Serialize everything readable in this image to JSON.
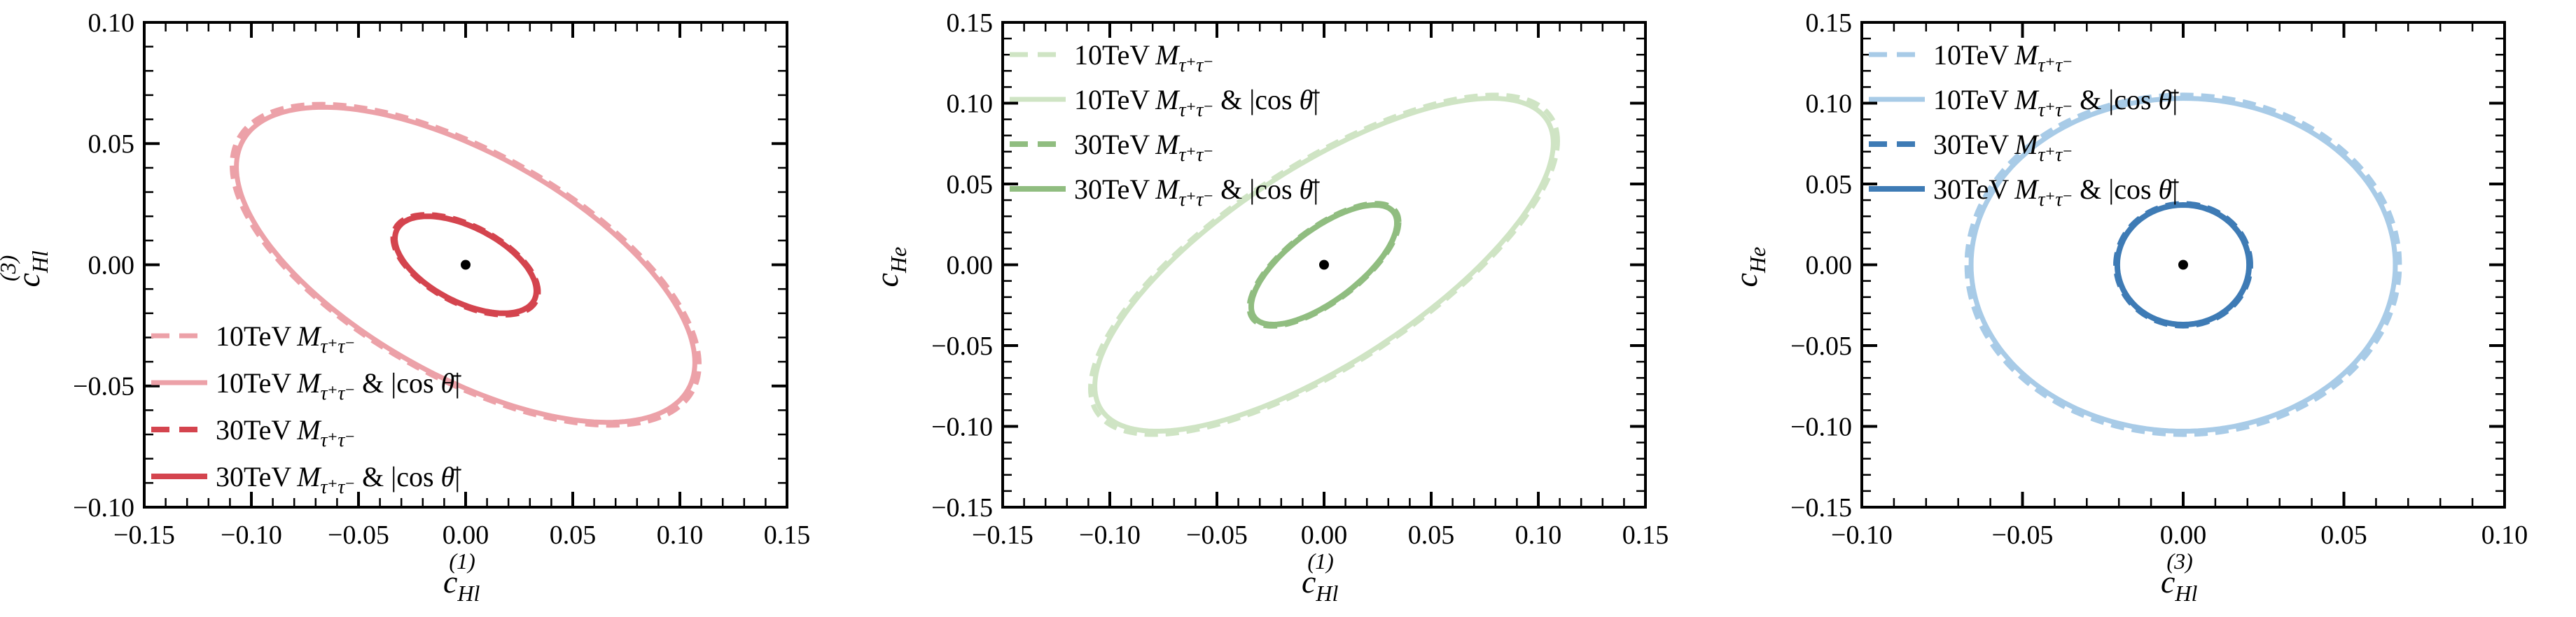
{
  "figure": {
    "background": "#ffffff",
    "text_color": "#000000",
    "frame_color": "#000000"
  },
  "costheta_suffix": {
    "pre": " & |cos ",
    "theta": "θ̄",
    "post": "|"
  },
  "chart_data": [
    {
      "type": "line",
      "subtype": "confidence-ellipses",
      "title": "",
      "xlabel": {
        "base": "c",
        "sub": "Hl",
        "sup": "(1)"
      },
      "ylabel": {
        "base": "c",
        "sub": "Hl",
        "sup": "(3)"
      },
      "xlim": [
        -0.15,
        0.15
      ],
      "ylim": [
        -0.1,
        0.1
      ],
      "xticks": [
        -0.15,
        -0.1,
        -0.05,
        0.0,
        0.05,
        0.1,
        0.15
      ],
      "yticks": [
        -0.1,
        -0.05,
        0.0,
        0.05,
        0.1
      ],
      "minor_tick_step": 0.01,
      "grid": false,
      "legend_position": "bottom-left",
      "center_point": {
        "x": 0,
        "y": 0
      },
      "series": [
        {
          "name": "10TeV M_τ⁺τ⁻",
          "tev": "10TeV",
          "symbol": "M",
          "symbol_sub": "τ⁺τ⁻",
          "with_costheta": false,
          "color": "#ECA1A8",
          "dashed": true,
          "line_width": 7,
          "center": [
            0,
            0
          ],
          "sigma_x": 0.109,
          "sigma_y": 0.0662,
          "rho": -0.62
        },
        {
          "name": "10TeV M_τ⁺τ⁻ & |cos θ̄|",
          "tev": "10TeV",
          "symbol": "M",
          "symbol_sub": "τ⁺τ⁻",
          "with_costheta": true,
          "color": "#ECA1A8",
          "dashed": false,
          "line_width": 7,
          "center": [
            0,
            0
          ],
          "sigma_x": 0.107,
          "sigma_y": 0.065,
          "rho": -0.62
        },
        {
          "name": "30TeV M_τ⁺τ⁻",
          "tev": "30TeV",
          "symbol": "M",
          "symbol_sub": "τ⁺τ⁻",
          "with_costheta": false,
          "color": "#D4444E",
          "dashed": true,
          "line_width": 8,
          "center": [
            0,
            0
          ],
          "sigma_x": 0.0338,
          "sigma_y": 0.0206,
          "rho": -0.54
        },
        {
          "name": "30TeV M_τ⁺τ⁻ & |cos θ̄|",
          "tev": "30TeV",
          "symbol": "M",
          "symbol_sub": "τ⁺τ⁻",
          "with_costheta": true,
          "color": "#D4444E",
          "dashed": false,
          "line_width": 8,
          "center": [
            0,
            0
          ],
          "sigma_x": 0.033,
          "sigma_y": 0.02,
          "rho": -0.54
        }
      ]
    },
    {
      "type": "line",
      "subtype": "confidence-ellipses",
      "title": "",
      "xlabel": {
        "base": "c",
        "sub": "Hl",
        "sup": "(1)"
      },
      "ylabel": {
        "base": "c",
        "sub": "He",
        "sup": ""
      },
      "xlim": [
        -0.15,
        0.15
      ],
      "ylim": [
        -0.15,
        0.15
      ],
      "xticks": [
        -0.15,
        -0.1,
        -0.05,
        0.0,
        0.05,
        0.1,
        0.15
      ],
      "yticks": [
        -0.15,
        -0.1,
        -0.05,
        0.0,
        0.05,
        0.1,
        0.15
      ],
      "minor_tick_step": 0.01,
      "grid": false,
      "legend_position": "top-left",
      "center_point": {
        "x": 0,
        "y": 0
      },
      "series": [
        {
          "name": "10TeV M_τ⁺τ⁻",
          "tev": "10TeV",
          "symbol": "M",
          "symbol_sub": "τ⁺τ⁻",
          "with_costheta": false,
          "color": "#CFE4C4",
          "dashed": true,
          "line_width": 7,
          "center": [
            0,
            0
          ],
          "sigma_x": 0.109,
          "sigma_y": 0.105,
          "rho": 0.73
        },
        {
          "name": "10TeV M_τ⁺τ⁻ & |cos θ̄|",
          "tev": "10TeV",
          "symbol": "M",
          "symbol_sub": "τ⁺τ⁻",
          "with_costheta": true,
          "color": "#CFE4C4",
          "dashed": false,
          "line_width": 7,
          "center": [
            0,
            0
          ],
          "sigma_x": 0.107,
          "sigma_y": 0.103,
          "rho": 0.73
        },
        {
          "name": "30TeV M_τ⁺τ⁻",
          "tev": "30TeV",
          "symbol": "M",
          "symbol_sub": "τ⁺τ⁻",
          "with_costheta": false,
          "color": "#90BD80",
          "dashed": true,
          "line_width": 8,
          "center": [
            0,
            0
          ],
          "sigma_x": 0.0348,
          "sigma_y": 0.0378,
          "rho": 0.7
        },
        {
          "name": "30TeV M_τ⁺τ⁻ & |cos θ̄|",
          "tev": "30TeV",
          "symbol": "M",
          "symbol_sub": "τ⁺τ⁻",
          "with_costheta": true,
          "color": "#90BD80",
          "dashed": false,
          "line_width": 8,
          "center": [
            0,
            0
          ],
          "sigma_x": 0.034,
          "sigma_y": 0.037,
          "rho": 0.7
        }
      ]
    },
    {
      "type": "line",
      "subtype": "confidence-ellipses",
      "title": "",
      "xlabel": {
        "base": "c",
        "sub": "Hl",
        "sup": "(3)"
      },
      "ylabel": {
        "base": "c",
        "sub": "He",
        "sup": ""
      },
      "xlim": [
        -0.1,
        0.1
      ],
      "ylim": [
        -0.15,
        0.15
      ],
      "xticks": [
        -0.1,
        -0.05,
        0.0,
        0.05,
        0.1
      ],
      "yticks": [
        -0.15,
        -0.1,
        -0.05,
        0.0,
        0.05,
        0.1,
        0.15
      ],
      "minor_tick_step": 0.01,
      "grid": false,
      "legend_position": "top-left",
      "center_point": {
        "x": 0,
        "y": 0
      },
      "series": [
        {
          "name": "10TeV M_τ⁺τ⁻",
          "tev": "10TeV",
          "symbol": "M",
          "symbol_sub": "τ⁺τ⁻",
          "with_costheta": false,
          "color": "#A8CBE7",
          "dashed": true,
          "line_width": 7,
          "center": [
            0,
            0
          ],
          "sigma_x": 0.0673,
          "sigma_y": 0.105,
          "rho": 0.0
        },
        {
          "name": "10TeV M_τ⁺τ⁻ & |cos θ̄|",
          "tev": "10TeV",
          "symbol": "M",
          "symbol_sub": "τ⁺τ⁻",
          "with_costheta": true,
          "color": "#A8CBE7",
          "dashed": false,
          "line_width": 7,
          "center": [
            0,
            0
          ],
          "sigma_x": 0.066,
          "sigma_y": 0.103,
          "rho": 0.0
        },
        {
          "name": "30TeV M_τ⁺τ⁻",
          "tev": "30TeV",
          "symbol": "M",
          "symbol_sub": "τ⁺τ⁻",
          "with_costheta": false,
          "color": "#3E7BB5",
          "dashed": true,
          "line_width": 8,
          "center": [
            0,
            0
          ],
          "sigma_x": 0.0209,
          "sigma_y": 0.0377,
          "rho": 0.0
        },
        {
          "name": "30TeV M_τ⁺τ⁻ & |cos θ̄|",
          "tev": "30TeV",
          "symbol": "M",
          "symbol_sub": "τ⁺τ⁻",
          "with_costheta": true,
          "color": "#3E7BB5",
          "dashed": false,
          "line_width": 8,
          "center": [
            0,
            0
          ],
          "sigma_x": 0.0205,
          "sigma_y": 0.037,
          "rho": 0.0
        }
      ]
    }
  ]
}
